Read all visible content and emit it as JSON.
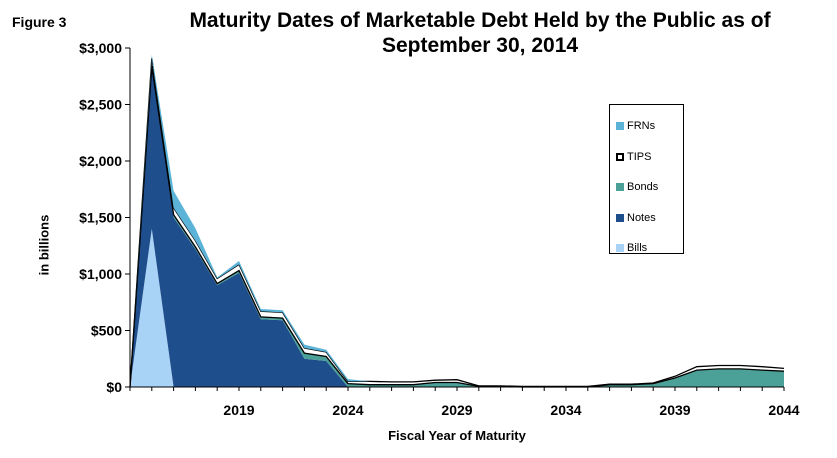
{
  "figure_label": "Figure 3",
  "chart_data": {
    "type": "area",
    "stacked": true,
    "title": "Maturity Dates of Marketable Debt Held by the Public as of September 30, 2014",
    "xlabel": "Fiscal Year of Maturity",
    "ylabel": "in billions",
    "x": [
      2014,
      2015,
      2016,
      2017,
      2018,
      2019,
      2020,
      2021,
      2022,
      2023,
      2024,
      2025,
      2026,
      2027,
      2028,
      2029,
      2030,
      2031,
      2032,
      2033,
      2034,
      2035,
      2036,
      2037,
      2038,
      2039,
      2040,
      2041,
      2042,
      2043,
      2044
    ],
    "xlim": [
      2014,
      2044
    ],
    "xticks": [
      {
        "value": 2019,
        "label": "2019"
      },
      {
        "value": 2024,
        "label": "2024"
      },
      {
        "value": 2029,
        "label": "2029"
      },
      {
        "value": 2034,
        "label": "2034"
      },
      {
        "value": 2039,
        "label": "2039"
      },
      {
        "value": 2044,
        "label": "2044"
      }
    ],
    "ylim": [
      0,
      3000
    ],
    "yticks": [
      {
        "value": 0,
        "label": "$0"
      },
      {
        "value": 500,
        "label": "$500"
      },
      {
        "value": 1000,
        "label": "$1,000"
      },
      {
        "value": 1500,
        "label": "$1,500"
      },
      {
        "value": 2000,
        "label": "$2,000"
      },
      {
        "value": 2500,
        "label": "$2,500"
      },
      {
        "value": 3000,
        "label": "$3,000"
      }
    ],
    "legend_position": "right",
    "series": [
      {
        "name": "Bills",
        "color": "#a9d2f7",
        "values": [
          0,
          1400,
          0,
          0,
          0,
          0,
          0,
          0,
          0,
          0,
          0,
          0,
          0,
          0,
          0,
          0,
          0,
          0,
          0,
          0,
          0,
          0,
          0,
          0,
          0,
          0,
          0,
          0,
          0,
          0,
          0
        ]
      },
      {
        "name": "Notes",
        "color": "#1f4e8c",
        "values": [
          0,
          1440,
          1500,
          1220,
          900,
          1010,
          600,
          590,
          250,
          230,
          0,
          0,
          0,
          0,
          0,
          0,
          0,
          0,
          0,
          0,
          0,
          0,
          0,
          0,
          0,
          0,
          0,
          0,
          0,
          0,
          0
        ]
      },
      {
        "name": "Bonds",
        "color": "#4ba198",
        "values": [
          0,
          0,
          25,
          20,
          15,
          20,
          20,
          20,
          50,
          40,
          30,
          20,
          20,
          20,
          40,
          40,
          5,
          5,
          0,
          0,
          0,
          0,
          20,
          20,
          30,
          80,
          150,
          160,
          160,
          150,
          140
        ]
      },
      {
        "name": "TIPS",
        "color": "#ffffff",
        "values": [
          0,
          70,
          60,
          55,
          45,
          55,
          50,
          50,
          45,
          40,
          20,
          30,
          25,
          25,
          20,
          25,
          5,
          5,
          5,
          5,
          5,
          5,
          5,
          5,
          5,
          15,
          30,
          30,
          30,
          30,
          25
        ]
      },
      {
        "name": "FRNs",
        "color": "#5bb4d8",
        "values": [
          0,
          30,
          150,
          110,
          10,
          30,
          20,
          20,
          30,
          20,
          20,
          0,
          0,
          0,
          0,
          0,
          0,
          0,
          0,
          0,
          0,
          0,
          0,
          0,
          0,
          0,
          0,
          0,
          0,
          0,
          0
        ]
      }
    ]
  }
}
